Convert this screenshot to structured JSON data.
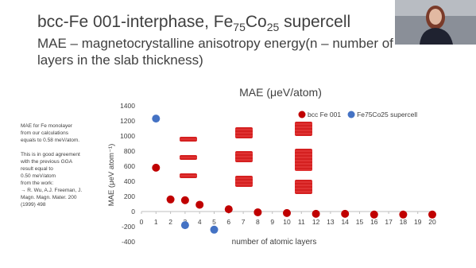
{
  "slide": {
    "title": [
      "bcc-Fe 001-interphase, Fe",
      "75",
      "Co",
      "25",
      " supercell"
    ],
    "subtitle": [
      "MAE – magnetocrystalline anisotropy energy(n – number of",
      "layers in the slab thickness)"
    ],
    "notes": [
      [
        "MAE for Fe monolayer",
        "from our calculations",
        "equals to 0.58 meV/atom."
      ],
      [
        "This is in good agreement",
        "with the previous GGA",
        "result equal to",
        "0.50 meV/atom",
        "from the work:",
        "→ R. Wu, A.J. Freeman, J.",
        "Magn. Magn. Mater. 200",
        "(1999) 498"
      ]
    ]
  },
  "chart_data": {
    "type": "scatter",
    "title": "MAE (μeV/atom)",
    "x_label": "number of atomic layers",
    "y_label": "MAE (μeV atom⁻¹)",
    "xlim": [
      0,
      20
    ],
    "xticks": [
      0,
      1,
      2,
      3,
      4,
      5,
      6,
      7,
      8,
      9,
      10,
      11,
      12,
      13,
      14,
      15,
      16,
      17,
      18,
      19,
      20
    ],
    "ylim": [
      -400,
      1400
    ],
    "yticks": [
      -400,
      -200,
      0,
      200,
      400,
      600,
      800,
      1000,
      1200,
      1400
    ],
    "grid": false,
    "legend": "top",
    "series": [
      {
        "name": "bcc Fe 001",
        "color": "#c00000",
        "x": [
          1,
          2,
          3,
          4,
          6,
          8,
          10,
          12,
          14,
          16,
          18,
          20
        ],
        "values": [
          580,
          160,
          150,
          90,
          30,
          -10,
          -20,
          -30,
          -30,
          -40,
          -40,
          -40
        ]
      },
      {
        "name": "Fe75Co25 supercell",
        "color": "#4472c4",
        "x": [
          1,
          3,
          5
        ],
        "values": [
          1230,
          -180,
          -240
        ]
      }
    ]
  }
}
